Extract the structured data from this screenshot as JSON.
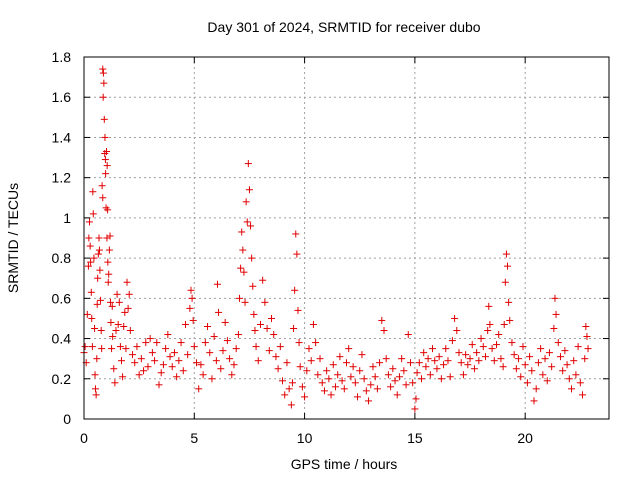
{
  "chart_data": {
    "type": "scatter",
    "title": "Day 301 of 2024, SRMTID for receiver dubo",
    "xlabel": "GPS time / hours",
    "ylabel": "SRMTID / TECUs",
    "xlim": [
      0,
      23.8
    ],
    "ylim": [
      0,
      1.8
    ],
    "xticks": [
      0,
      5,
      10,
      15,
      20
    ],
    "yticks": [
      0,
      0.2,
      0.4,
      0.6,
      0.8,
      1,
      1.2,
      1.4,
      1.6,
      1.8
    ],
    "ytick_labels": [
      "0",
      "0.2",
      "0.4",
      "0.6",
      "0.8",
      "1",
      "1.2",
      "1.4",
      "1.6",
      "1.8"
    ],
    "grid": true,
    "marker": "+",
    "color": "#e00000",
    "series": [
      {
        "name": "SRMTID",
        "points": [
          [
            0.0,
            0.33
          ],
          [
            0.05,
            0.36
          ],
          [
            0.1,
            0.28
          ],
          [
            0.15,
            0.52
          ],
          [
            0.2,
            0.76
          ],
          [
            0.22,
            0.9
          ],
          [
            0.25,
            0.98
          ],
          [
            0.28,
            0.86
          ],
          [
            0.3,
            0.78
          ],
          [
            0.33,
            0.63
          ],
          [
            0.35,
            0.5
          ],
          [
            0.38,
            0.36
          ],
          [
            0.4,
            1.13
          ],
          [
            0.42,
            1.02
          ],
          [
            0.45,
            0.8
          ],
          [
            0.48,
            0.45
          ],
          [
            0.5,
            0.22
          ],
          [
            0.52,
            0.15
          ],
          [
            0.55,
            0.12
          ],
          [
            0.58,
            0.3
          ],
          [
            0.6,
            0.57
          ],
          [
            0.62,
            0.7
          ],
          [
            0.65,
            0.82
          ],
          [
            0.68,
            0.9
          ],
          [
            0.7,
            0.84
          ],
          [
            0.72,
            0.74
          ],
          [
            0.75,
            0.59
          ],
          [
            0.78,
            0.44
          ],
          [
            0.8,
            0.35
          ],
          [
            0.82,
            1.16
          ],
          [
            0.85,
            1.1
          ],
          [
            0.85,
            1.74
          ],
          [
            0.87,
            1.6
          ],
          [
            0.88,
            1.72
          ],
          [
            0.9,
            1.67
          ],
          [
            0.92,
            1.49
          ],
          [
            0.94,
            1.32
          ],
          [
            0.95,
            1.4
          ],
          [
            0.97,
            1.29
          ],
          [
            0.98,
            1.22
          ],
          [
            1.0,
            1.05
          ],
          [
            1.02,
            1.33
          ],
          [
            1.04,
            0.9
          ],
          [
            1.05,
            1.26
          ],
          [
            1.07,
            1.04
          ],
          [
            1.08,
            0.78
          ],
          [
            1.1,
            0.68
          ],
          [
            1.12,
            0.72
          ],
          [
            1.15,
            0.84
          ],
          [
            1.18,
            0.91
          ],
          [
            1.2,
            0.58
          ],
          [
            1.22,
            0.48
          ],
          [
            1.25,
            0.35
          ],
          [
            1.28,
            0.56
          ],
          [
            1.3,
            0.41
          ],
          [
            1.35,
            0.25
          ],
          [
            1.4,
            0.18
          ],
          [
            1.45,
            0.44
          ],
          [
            1.5,
            0.62
          ],
          [
            1.55,
            0.47
          ],
          [
            1.6,
            0.58
          ],
          [
            1.65,
            0.36
          ],
          [
            1.7,
            0.29
          ],
          [
            1.75,
            0.21
          ],
          [
            1.8,
            0.46
          ],
          [
            1.85,
            0.53
          ],
          [
            1.9,
            0.35
          ],
          [
            1.95,
            0.68
          ],
          [
            2.0,
            0.55
          ],
          [
            2.05,
            0.62
          ],
          [
            2.1,
            0.44
          ],
          [
            2.2,
            0.32
          ],
          [
            2.3,
            0.28
          ],
          [
            2.4,
            0.36
          ],
          [
            2.5,
            0.22
          ],
          [
            2.6,
            0.3
          ],
          [
            2.7,
            0.24
          ],
          [
            2.8,
            0.38
          ],
          [
            2.9,
            0.26
          ],
          [
            3.0,
            0.4
          ],
          [
            3.1,
            0.33
          ],
          [
            3.2,
            0.29
          ],
          [
            3.3,
            0.38
          ],
          [
            3.4,
            0.17
          ],
          [
            3.5,
            0.23
          ],
          [
            3.6,
            0.27
          ],
          [
            3.7,
            0.35
          ],
          [
            3.8,
            0.42
          ],
          [
            3.9,
            0.31
          ],
          [
            4.0,
            0.26
          ],
          [
            4.1,
            0.33
          ],
          [
            4.2,
            0.21
          ],
          [
            4.3,
            0.29
          ],
          [
            4.4,
            0.38
          ],
          [
            4.5,
            0.24
          ],
          [
            4.6,
            0.47
          ],
          [
            4.7,
            0.32
          ],
          [
            4.8,
            0.55
          ],
          [
            4.85,
            0.64
          ],
          [
            4.9,
            0.6
          ],
          [
            4.95,
            0.49
          ],
          [
            5.0,
            0.36
          ],
          [
            5.1,
            0.28
          ],
          [
            5.2,
            0.15
          ],
          [
            5.3,
            0.27
          ],
          [
            5.4,
            0.22
          ],
          [
            5.5,
            0.38
          ],
          [
            5.6,
            0.46
          ],
          [
            5.7,
            0.33
          ],
          [
            5.8,
            0.2
          ],
          [
            5.9,
            0.41
          ],
          [
            6.0,
            0.29
          ],
          [
            6.05,
            0.67
          ],
          [
            6.1,
            0.53
          ],
          [
            6.2,
            0.25
          ],
          [
            6.3,
            0.34
          ],
          [
            6.4,
            0.48
          ],
          [
            6.5,
            0.39
          ],
          [
            6.6,
            0.3
          ],
          [
            6.7,
            0.22
          ],
          [
            6.8,
            0.27
          ],
          [
            6.9,
            0.35
          ],
          [
            7.0,
            0.42
          ],
          [
            7.05,
            0.6
          ],
          [
            7.1,
            0.75
          ],
          [
            7.15,
            0.93
          ],
          [
            7.2,
            0.84
          ],
          [
            7.25,
            0.73
          ],
          [
            7.3,
            0.58
          ],
          [
            7.35,
            1.08
          ],
          [
            7.4,
            0.98
          ],
          [
            7.45,
            1.27
          ],
          [
            7.5,
            1.14
          ],
          [
            7.55,
            0.96
          ],
          [
            7.6,
            0.8
          ],
          [
            7.65,
            0.66
          ],
          [
            7.7,
            0.52
          ],
          [
            7.75,
            0.44
          ],
          [
            7.8,
            0.36
          ],
          [
            7.9,
            0.29
          ],
          [
            8.0,
            0.47
          ],
          [
            8.1,
            0.69
          ],
          [
            8.2,
            0.58
          ],
          [
            8.3,
            0.45
          ],
          [
            8.4,
            0.34
          ],
          [
            8.5,
            0.5
          ],
          [
            8.6,
            0.42
          ],
          [
            8.7,
            0.31
          ],
          [
            8.8,
            0.25
          ],
          [
            8.9,
            0.36
          ],
          [
            9.0,
            0.19
          ],
          [
            9.1,
            0.12
          ],
          [
            9.2,
            0.28
          ],
          [
            9.3,
            0.15
          ],
          [
            9.4,
            0.07
          ],
          [
            9.45,
            0.18
          ],
          [
            9.5,
            0.45
          ],
          [
            9.55,
            0.64
          ],
          [
            9.6,
            0.92
          ],
          [
            9.65,
            0.82
          ],
          [
            9.7,
            0.54
          ],
          [
            9.75,
            0.38
          ],
          [
            9.8,
            0.26
          ],
          [
            9.9,
            0.16
          ],
          [
            10.0,
            0.11
          ],
          [
            10.1,
            0.24
          ],
          [
            10.2,
            0.35
          ],
          [
            10.3,
            0.29
          ],
          [
            10.4,
            0.47
          ],
          [
            10.5,
            0.38
          ],
          [
            10.6,
            0.22
          ],
          [
            10.7,
            0.3
          ],
          [
            10.8,
            0.18
          ],
          [
            10.9,
            0.14
          ],
          [
            11.0,
            0.24
          ],
          [
            11.1,
            0.2
          ],
          [
            11.2,
            0.12
          ],
          [
            11.3,
            0.27
          ],
          [
            11.4,
            0.16
          ],
          [
            11.5,
            0.22
          ],
          [
            11.6,
            0.31
          ],
          [
            11.7,
            0.19
          ],
          [
            11.8,
            0.15
          ],
          [
            11.9,
            0.28
          ],
          [
            12.0,
            0.35
          ],
          [
            12.1,
            0.21
          ],
          [
            12.2,
            0.26
          ],
          [
            12.3,
            0.18
          ],
          [
            12.4,
            0.11
          ],
          [
            12.5,
            0.24
          ],
          [
            12.6,
            0.32
          ],
          [
            12.7,
            0.2
          ],
          [
            12.8,
            0.14
          ],
          [
            12.9,
            0.09
          ],
          [
            13.0,
            0.17
          ],
          [
            13.1,
            0.26
          ],
          [
            13.2,
            0.21
          ],
          [
            13.3,
            0.15
          ],
          [
            13.4,
            0.28
          ],
          [
            13.5,
            0.49
          ],
          [
            13.6,
            0.44
          ],
          [
            13.7,
            0.3
          ],
          [
            13.8,
            0.22
          ],
          [
            13.9,
            0.16
          ],
          [
            14.0,
            0.25
          ],
          [
            14.1,
            0.19
          ],
          [
            14.2,
            0.12
          ],
          [
            14.3,
            0.21
          ],
          [
            14.4,
            0.3
          ],
          [
            14.5,
            0.24
          ],
          [
            14.6,
            0.17
          ],
          [
            14.7,
            0.42
          ],
          [
            14.8,
            0.28
          ],
          [
            14.9,
            0.18
          ],
          [
            15.0,
            0.05
          ],
          [
            15.05,
            0.1
          ],
          [
            15.1,
            0.23
          ],
          [
            15.2,
            0.28
          ],
          [
            15.3,
            0.2
          ],
          [
            15.4,
            0.33
          ],
          [
            15.5,
            0.26
          ],
          [
            15.6,
            0.3
          ],
          [
            15.7,
            0.22
          ],
          [
            15.8,
            0.35
          ],
          [
            15.9,
            0.29
          ],
          [
            16.0,
            0.25
          ],
          [
            16.1,
            0.31
          ],
          [
            16.2,
            0.2
          ],
          [
            16.3,
            0.27
          ],
          [
            16.4,
            0.35
          ],
          [
            16.5,
            0.29
          ],
          [
            16.6,
            0.21
          ],
          [
            16.7,
            0.39
          ],
          [
            16.8,
            0.5
          ],
          [
            16.9,
            0.44
          ],
          [
            17.0,
            0.33
          ],
          [
            17.1,
            0.28
          ],
          [
            17.2,
            0.22
          ],
          [
            17.3,
            0.32
          ],
          [
            17.4,
            0.27
          ],
          [
            17.5,
            0.3
          ],
          [
            17.6,
            0.37
          ],
          [
            17.7,
            0.25
          ],
          [
            17.8,
            0.33
          ],
          [
            17.9,
            0.29
          ],
          [
            18.0,
            0.4
          ],
          [
            18.1,
            0.36
          ],
          [
            18.2,
            0.31
          ],
          [
            18.3,
            0.44
          ],
          [
            18.35,
            0.56
          ],
          [
            18.4,
            0.47
          ],
          [
            18.5,
            0.35
          ],
          [
            18.6,
            0.29
          ],
          [
            18.7,
            0.37
          ],
          [
            18.8,
            0.42
          ],
          [
            18.9,
            0.3
          ],
          [
            19.0,
            0.26
          ],
          [
            19.05,
            0.47
          ],
          [
            19.1,
            0.68
          ],
          [
            19.15,
            0.82
          ],
          [
            19.2,
            0.76
          ],
          [
            19.25,
            0.58
          ],
          [
            19.3,
            0.49
          ],
          [
            19.4,
            0.38
          ],
          [
            19.5,
            0.32
          ],
          [
            19.6,
            0.25
          ],
          [
            19.7,
            0.3
          ],
          [
            19.8,
            0.21
          ],
          [
            19.9,
            0.36
          ],
          [
            20.0,
            0.27
          ],
          [
            20.1,
            0.18
          ],
          [
            20.2,
            0.31
          ],
          [
            20.3,
            0.24
          ],
          [
            20.4,
            0.09
          ],
          [
            20.5,
            0.15
          ],
          [
            20.6,
            0.28
          ],
          [
            20.7,
            0.35
          ],
          [
            20.8,
            0.22
          ],
          [
            20.9,
            0.3
          ],
          [
            21.0,
            0.19
          ],
          [
            21.1,
            0.33
          ],
          [
            21.2,
            0.26
          ],
          [
            21.3,
            0.45
          ],
          [
            21.35,
            0.6
          ],
          [
            21.4,
            0.52
          ],
          [
            21.5,
            0.38
          ],
          [
            21.6,
            0.31
          ],
          [
            21.7,
            0.24
          ],
          [
            21.8,
            0.34
          ],
          [
            21.9,
            0.27
          ],
          [
            22.0,
            0.2
          ],
          [
            22.1,
            0.15
          ],
          [
            22.2,
            0.29
          ],
          [
            22.3,
            0.22
          ],
          [
            22.4,
            0.36
          ],
          [
            22.5,
            0.18
          ],
          [
            22.6,
            0.12
          ],
          [
            22.7,
            0.3
          ],
          [
            22.75,
            0.46
          ],
          [
            22.8,
            0.41
          ],
          [
            22.85,
            0.35
          ]
        ]
      }
    ]
  }
}
